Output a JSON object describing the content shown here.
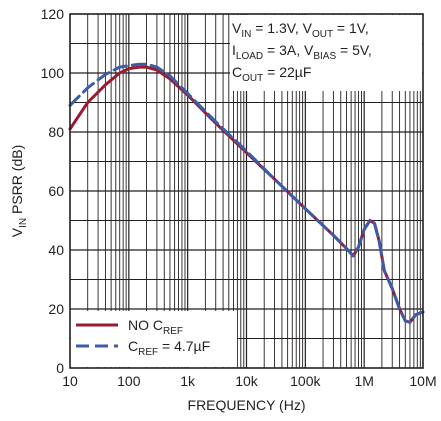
{
  "chart_data": {
    "type": "line",
    "xlabel": "FREQUENCY (Hz)",
    "ylabel": {
      "main": "V",
      "sub": "IN",
      "rest": " PSRR (dB)"
    },
    "xscale": "log",
    "xlim": [
      10,
      10000000
    ],
    "ylim": [
      0,
      120
    ],
    "grid": true,
    "legend_position": "bottom-left",
    "x_ticks": [
      {
        "value": 10,
        "label": "10"
      },
      {
        "value": 100,
        "label": "100"
      },
      {
        "value": 1000,
        "label": "1k"
      },
      {
        "value": 10000,
        "label": "10k"
      },
      {
        "value": 100000,
        "label": "100k"
      },
      {
        "value": 1000000,
        "label": "1M"
      },
      {
        "value": 10000000,
        "label": "10M"
      }
    ],
    "y_ticks": [
      {
        "value": 0,
        "label": "0"
      },
      {
        "value": 20,
        "label": "20"
      },
      {
        "value": 40,
        "label": "40"
      },
      {
        "value": 60,
        "label": "60"
      },
      {
        "value": 80,
        "label": "80"
      },
      {
        "value": 100,
        "label": "100"
      },
      {
        "value": 120,
        "label": "120"
      }
    ],
    "conditions": [
      [
        {
          "t": "V"
        },
        {
          "t": "IN",
          "sub": true
        },
        {
          "t": " = 1.3V, V"
        },
        {
          "t": "OUT",
          "sub": true
        },
        {
          "t": " = 1V,"
        }
      ],
      [
        {
          "t": "I"
        },
        {
          "t": "LOAD",
          "sub": true
        },
        {
          "t": " = 3A, V"
        },
        {
          "t": "BIAS",
          "sub": true
        },
        {
          "t": " = 5V,"
        }
      ],
      [
        {
          "t": "C"
        },
        {
          "t": "OUT",
          "sub": true
        },
        {
          "t": " = 22µF"
        }
      ]
    ],
    "series": [
      {
        "legend": [
          {
            "t": "NO C"
          },
          {
            "t": "REF",
            "sub": true
          }
        ],
        "color": "#9b1b30",
        "style": "solid",
        "points": [
          [
            10,
            81
          ],
          [
            20,
            90
          ],
          [
            40,
            96
          ],
          [
            70,
            100
          ],
          [
            100,
            101.5
          ],
          [
            150,
            102
          ],
          [
            200,
            102
          ],
          [
            300,
            101
          ],
          [
            500,
            98
          ],
          [
            1000,
            92.5
          ],
          [
            3000,
            83
          ],
          [
            10000,
            73
          ],
          [
            30000,
            64
          ],
          [
            100000,
            54
          ],
          [
            300000,
            45
          ],
          [
            500000,
            40.5
          ],
          [
            650000,
            38
          ],
          [
            800000,
            41
          ],
          [
            1000000,
            47
          ],
          [
            1250000,
            50
          ],
          [
            1500000,
            49
          ],
          [
            1800000,
            43
          ],
          [
            2200000,
            33
          ],
          [
            3000000,
            27
          ],
          [
            4000000,
            20
          ],
          [
            5000000,
            16
          ],
          [
            6000000,
            15.5
          ],
          [
            7500000,
            18
          ],
          [
            10000000,
            19
          ]
        ]
      },
      {
        "legend": [
          {
            "t": "C"
          },
          {
            "t": "REF",
            "sub": true
          },
          {
            "t": " = 4.7µF"
          }
        ],
        "color": "#3c5ca8",
        "style": "dashed",
        "points": [
          [
            10,
            89
          ],
          [
            20,
            95
          ],
          [
            40,
            99.5
          ],
          [
            70,
            102
          ],
          [
            100,
            102.5
          ],
          [
            150,
            103
          ],
          [
            200,
            103
          ],
          [
            300,
            102
          ],
          [
            500,
            99
          ],
          [
            1000,
            93
          ],
          [
            3000,
            83.5
          ],
          [
            10000,
            73.5
          ],
          [
            30000,
            64
          ],
          [
            100000,
            54
          ],
          [
            300000,
            45
          ],
          [
            500000,
            40.5
          ],
          [
            650000,
            38
          ],
          [
            800000,
            41
          ],
          [
            1000000,
            47
          ],
          [
            1250000,
            50
          ],
          [
            1500000,
            49
          ],
          [
            1800000,
            43
          ],
          [
            2200000,
            33
          ],
          [
            3000000,
            27
          ],
          [
            4000000,
            20
          ],
          [
            5000000,
            16
          ],
          [
            6000000,
            15.5
          ],
          [
            7500000,
            18
          ],
          [
            10000000,
            19
          ]
        ]
      }
    ]
  }
}
